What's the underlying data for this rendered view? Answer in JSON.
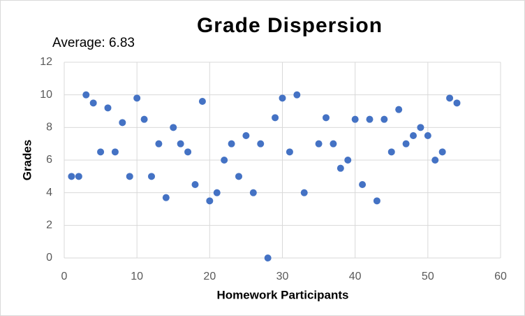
{
  "chart_data": {
    "type": "scatter",
    "title": "Grade Dispersion",
    "annotation": "Average: 6.83",
    "x_label": "Homework Participants",
    "y_label": "Grades",
    "series": [
      {
        "name": "Grades",
        "color": "#4472c4",
        "x": [
          1,
          2,
          3,
          4,
          5,
          6,
          7,
          8,
          9,
          10,
          11,
          12,
          13,
          14,
          15,
          16,
          17,
          18,
          19,
          20,
          21,
          22,
          23,
          24,
          25,
          26,
          27,
          28,
          29,
          30,
          31,
          32,
          33,
          35,
          36,
          37,
          38,
          39,
          40,
          41,
          42,
          43,
          44,
          45,
          46,
          47,
          48,
          49,
          50,
          51,
          52,
          53,
          54
        ],
        "values": [
          5,
          5,
          10,
          9.5,
          6.5,
          9.2,
          6.5,
          8.3,
          5,
          9.8,
          8.5,
          5,
          7,
          3.7,
          8,
          7,
          6.5,
          4.5,
          9.6,
          3.5,
          4,
          6,
          7,
          5,
          7.5,
          4,
          7,
          0,
          8.6,
          9.8,
          6.5,
          10,
          4,
          7,
          8.6,
          7,
          5.5,
          6,
          8.5,
          4.5,
          8.5,
          3.5,
          8.5,
          6.5,
          9.1,
          7,
          7.5,
          8,
          7.5,
          6,
          6.5,
          9.8,
          9.5
        ]
      }
    ],
    "xlim": [
      0,
      60
    ],
    "xticks": [
      0,
      10,
      20,
      30,
      40,
      50,
      60
    ],
    "ylim": [
      0,
      12
    ],
    "yticks": [
      0,
      2,
      4,
      6,
      8,
      10,
      12
    ],
    "grid": true
  }
}
